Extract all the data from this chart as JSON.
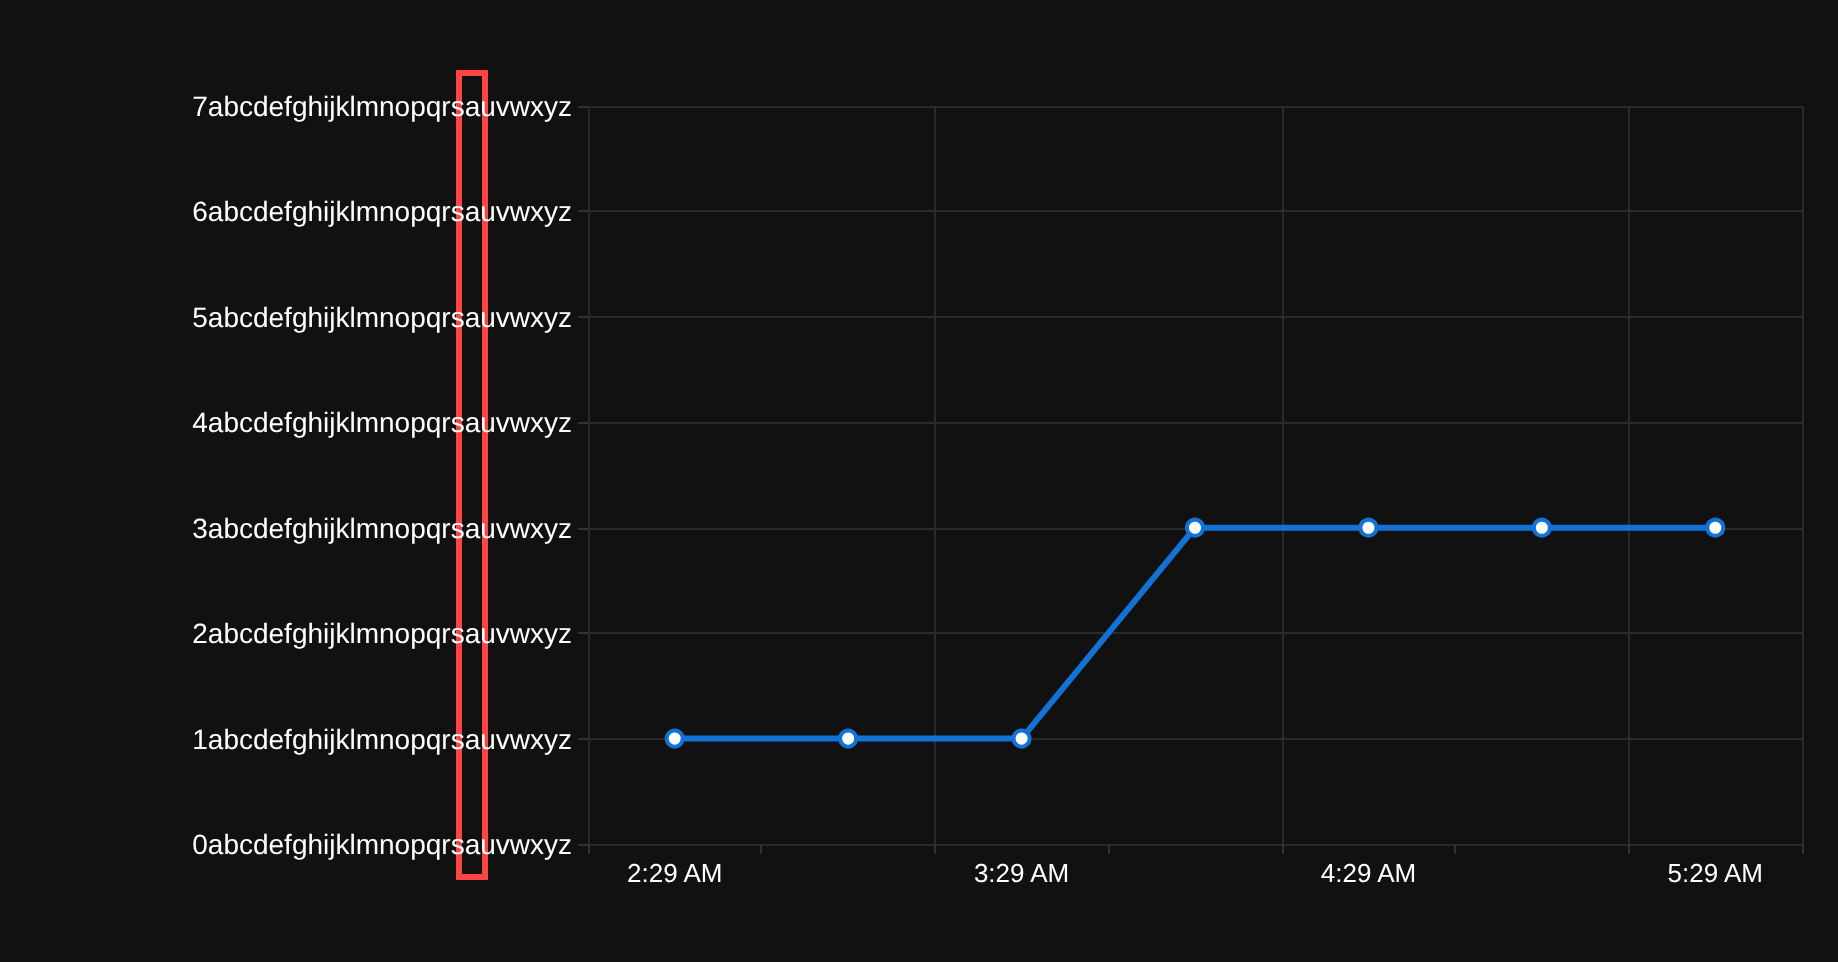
{
  "chart_data": {
    "type": "line",
    "categories": [
      "2:29 AM",
      null,
      "3:29 AM",
      null,
      "4:29 AM",
      null,
      "5:29 AM"
    ],
    "series": [
      {
        "color": "#1272d6",
        "values": [
          1,
          1,
          1,
          3,
          3,
          3,
          3
        ]
      }
    ],
    "ylim": [
      0,
      7
    ],
    "yticks": [
      {
        "value": 0,
        "label": "0abcdefghijklmnopqrsauvwxyz"
      },
      {
        "value": 1,
        "label": "1abcdefghijklmnopqrsauvwxyz"
      },
      {
        "value": 2,
        "label": "2abcdefghijklmnopqrsauvwxyz"
      },
      {
        "value": 3,
        "label": "3abcdefghijklmnopqrsauvwxyz"
      },
      {
        "value": 4,
        "label": "4abcdefghijklmnopqrsauvwxyz"
      },
      {
        "value": 5,
        "label": "5abcdefghijklmnopqrsauvwxyz"
      },
      {
        "value": 6,
        "label": "6abcdefghijklmnopqrsauvwxyz"
      },
      {
        "value": 7,
        "label": "7abcdefghijklmnopqrsauvwxyz"
      }
    ],
    "grid": true,
    "marker": "circle",
    "line_style": "solid"
  }
}
